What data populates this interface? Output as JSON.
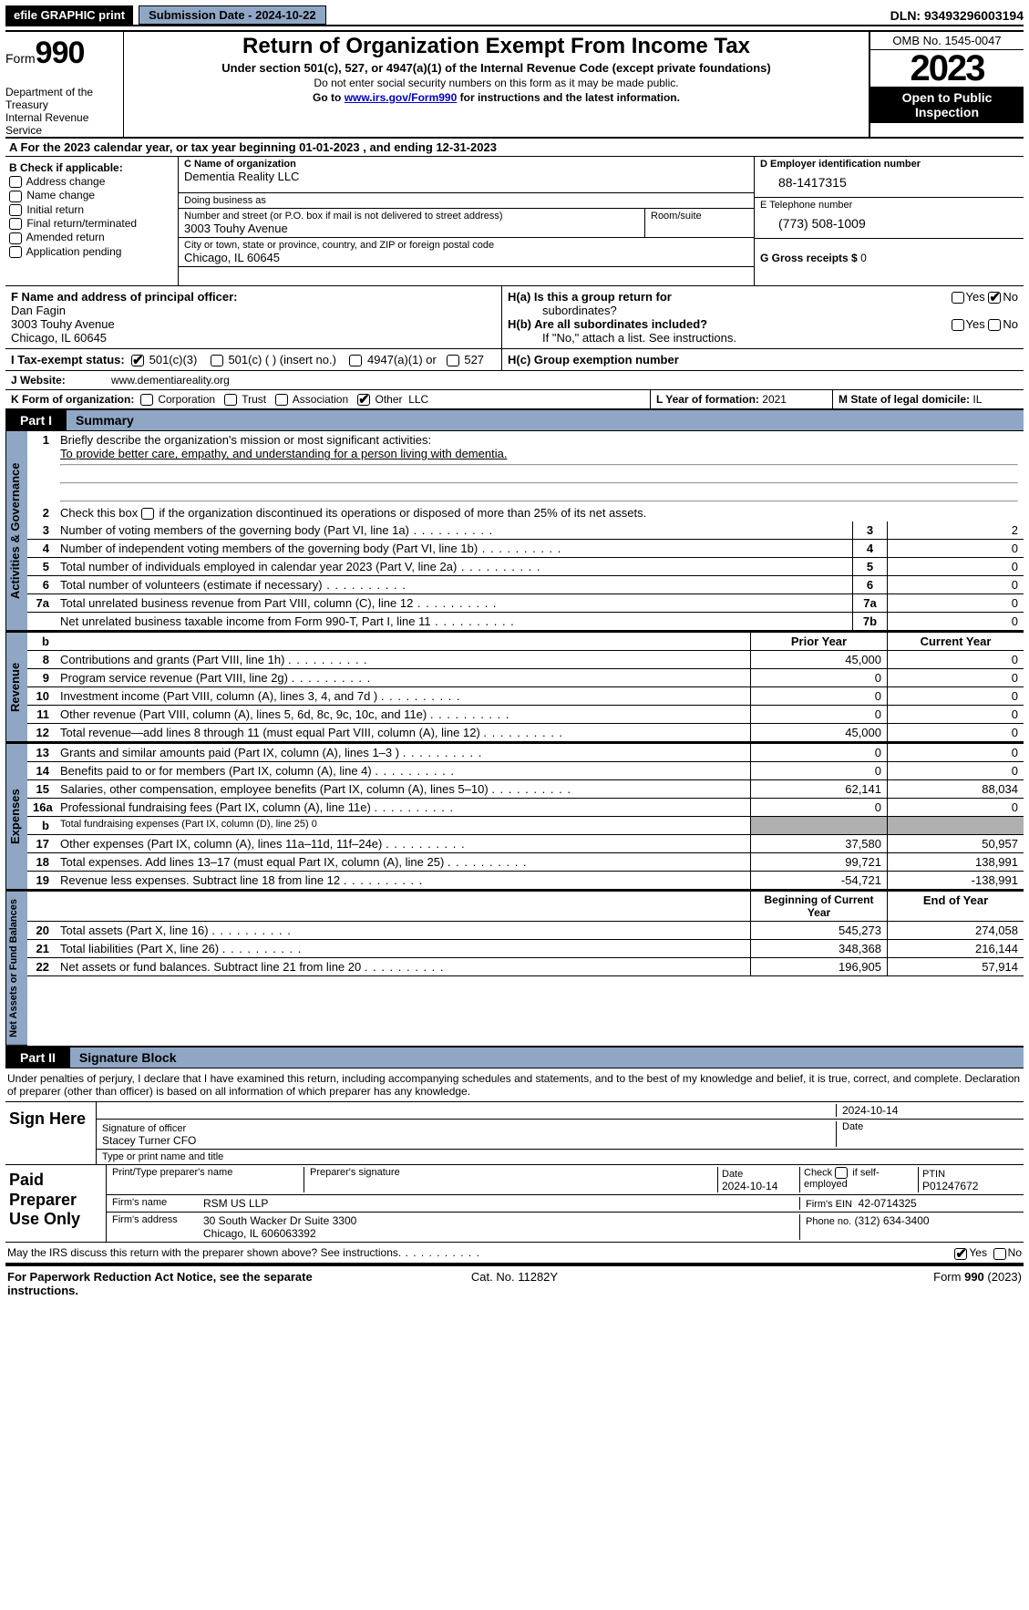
{
  "topbar": {
    "efile": "efile GRAPHIC print",
    "sub_btn": "Submission Date - 2024-10-22",
    "dln": "DLN: 93493296003194"
  },
  "header": {
    "form_word": "Form",
    "form_no": "990",
    "dept": "Department of the Treasury",
    "irs": "Internal Revenue Service",
    "title": "Return of Organization Exempt From Income Tax",
    "sub": "Under section 501(c), 527, or 4947(a)(1) of the Internal Revenue Code (except private foundations)",
    "notice": "Do not enter social security numbers on this form as it may be made public.",
    "goto_pre": "Go to ",
    "goto_link": "www.irs.gov/Form990",
    "goto_post": " for instructions and the latest information.",
    "omb": "OMB No. 1545-0047",
    "year": "2023",
    "open": "Open to Public Inspection"
  },
  "lineA": {
    "pre": "A For the 2023 calendar year, or tax year beginning ",
    "begin": "01-01-2023",
    "mid": "   , and ending ",
    "end": "12-31-2023"
  },
  "boxB": {
    "label": "B Check if applicable:",
    "items": [
      "Address change",
      "Name change",
      "Initial return",
      "Final return/terminated",
      "Amended return",
      "Application pending"
    ]
  },
  "boxC": {
    "name_lbl": "C Name of organization",
    "name": "Dementia Reality LLC",
    "dba_lbl": "Doing business as",
    "dba": "",
    "street_lbl": "Number and street (or P.O. box if mail is not delivered to street address)",
    "street": "3003 Touhy Avenue",
    "room_lbl": "Room/suite",
    "room": "",
    "city_lbl": "City or town, state or province, country, and ZIP or foreign postal code",
    "city": "Chicago, IL  60645"
  },
  "boxD": {
    "lbl": "D Employer identification number",
    "val": "88-1417315"
  },
  "boxE": {
    "lbl": "E Telephone number",
    "val": "(773) 508-1009"
  },
  "boxG": {
    "lbl": "G Gross receipts $",
    "val": "0"
  },
  "boxF": {
    "lbl": "F  Name and address of principal officer:",
    "name": "Dan Fagin",
    "addr1": "3003 Touhy Avenue",
    "addr2": "Chicago, IL  60645"
  },
  "boxH": {
    "ha_lbl": "H(a)  Is this a group return for",
    "ha_lbl2": "subordinates?",
    "ha_no": true,
    "hb_lbl": "H(b)  Are all subordinates included?",
    "hb_note": "If \"No,\" attach a list. See instructions.",
    "hc_lbl": "H(c)  Group exemption number"
  },
  "taxexempt": {
    "i_lbl": "I   Tax-exempt status:",
    "c3": "501(c)(3)",
    "c": "501(c) (  ) (insert no.)",
    "a1": "4947(a)(1) or",
    "s527": "527"
  },
  "website": {
    "j_lbl": "J   Website:",
    "val": "www.dementiareality.org"
  },
  "orgform": {
    "k_lbl": "K Form of organization:",
    "corp": "Corporation",
    "trust": "Trust",
    "assoc": "Association",
    "other": "Other",
    "other_val": "LLC"
  },
  "boxL": {
    "lbl": "L Year of formation:",
    "val": "2021"
  },
  "boxM": {
    "lbl": "M State of legal domicile:",
    "val": "IL"
  },
  "part1": {
    "hdr": "Part I",
    "title": "Summary"
  },
  "summary": {
    "l1_lbl": "Briefly describe the organization's mission or most significant activities:",
    "l1_val": "To provide better care, empathy, and understanding for a person living with dementia.",
    "l2": "Check this box        if the organization discontinued its operations or disposed of more than 25% of its net assets.",
    "gov_lines": [
      {
        "n": "3",
        "d": "Number of voting members of the governing body (Part VI, line 1a)",
        "b": "3",
        "v": "2"
      },
      {
        "n": "4",
        "d": "Number of independent voting members of the governing body (Part VI, line 1b)",
        "b": "4",
        "v": "0"
      },
      {
        "n": "5",
        "d": "Total number of individuals employed in calendar year 2023 (Part V, line 2a)",
        "b": "5",
        "v": "0"
      },
      {
        "n": "6",
        "d": "Total number of volunteers (estimate if necessary)",
        "b": "6",
        "v": "0"
      },
      {
        "n": "7a",
        "d": "Total unrelated business revenue from Part VIII, column (C), line 12",
        "b": "7a",
        "v": "0"
      },
      {
        "n": "",
        "d": "Net unrelated business taxable income from Form 990-T, Part I, line 11",
        "b": "7b",
        "v": "0"
      }
    ],
    "rev_hdr": {
      "b": "b",
      "py": "Prior Year",
      "cy": "Current Year"
    },
    "rev_lines": [
      {
        "n": "8",
        "d": "Contributions and grants (Part VIII, line 1h)",
        "py": "45,000",
        "cy": "0"
      },
      {
        "n": "9",
        "d": "Program service revenue (Part VIII, line 2g)",
        "py": "0",
        "cy": "0"
      },
      {
        "n": "10",
        "d": "Investment income (Part VIII, column (A), lines 3, 4, and 7d )",
        "py": "0",
        "cy": "0"
      },
      {
        "n": "11",
        "d": "Other revenue (Part VIII, column (A), lines 5, 6d, 8c, 9c, 10c, and 11e)",
        "py": "0",
        "cy": "0"
      },
      {
        "n": "12",
        "d": "Total revenue—add lines 8 through 11 (must equal Part VIII, column (A), line 12)",
        "py": "45,000",
        "cy": "0"
      }
    ],
    "exp_lines": [
      {
        "n": "13",
        "d": "Grants and similar amounts paid (Part IX, column (A), lines 1–3 )",
        "py": "0",
        "cy": "0"
      },
      {
        "n": "14",
        "d": "Benefits paid to or for members (Part IX, column (A), line 4)",
        "py": "0",
        "cy": "0"
      },
      {
        "n": "15",
        "d": "Salaries, other compensation, employee benefits (Part IX, column (A), lines 5–10)",
        "py": "62,141",
        "cy": "88,034"
      },
      {
        "n": "16a",
        "d": "Professional fundraising fees (Part IX, column (A), line 11e)",
        "py": "0",
        "cy": "0"
      },
      {
        "n": "b",
        "d": "Total fundraising expenses (Part IX, column (D), line 25) 0",
        "py": "",
        "cy": "",
        "shade": true,
        "small": true
      },
      {
        "n": "17",
        "d": "Other expenses (Part IX, column (A), lines 11a–11d, 11f–24e)",
        "py": "37,580",
        "cy": "50,957"
      },
      {
        "n": "18",
        "d": "Total expenses. Add lines 13–17 (must equal Part IX, column (A), line 25)",
        "py": "99,721",
        "cy": "138,991"
      },
      {
        "n": "19",
        "d": "Revenue less expenses. Subtract line 18 from line 12",
        "py": "-54,721",
        "cy": "-138,991"
      }
    ],
    "na_hdr": {
      "py": "Beginning of Current Year",
      "cy": "End of Year"
    },
    "na_lines": [
      {
        "n": "20",
        "d": "Total assets (Part X, line 16)",
        "py": "545,273",
        "cy": "274,058"
      },
      {
        "n": "21",
        "d": "Total liabilities (Part X, line 26)",
        "py": "348,368",
        "cy": "216,144"
      },
      {
        "n": "22",
        "d": "Net assets or fund balances. Subtract line 21 from line 20",
        "py": "196,905",
        "cy": "57,914"
      }
    ],
    "side_gov": "Activities & Governance",
    "side_rev": "Revenue",
    "side_exp": "Expenses",
    "side_na": "Net Assets or Fund Balances"
  },
  "part2": {
    "hdr": "Part II",
    "title": "Signature Block"
  },
  "sig": {
    "decl": "Under penalties of perjury, I declare that I have examined this return, including accompanying schedules and statements, and to the best of my knowledge and belief, it is true, correct, and complete. Declaration of preparer (other than officer) is based on all information of which preparer has any knowledge.",
    "sign_lbl": "Sign Here",
    "date": "2024-10-14",
    "sig_officer": "Signature of officer",
    "officer": "Stacey Turner CFO",
    "type_lbl": "Type or print name and title",
    "date_lbl": "Date",
    "paid_lbl": "Paid Preparer Use Only",
    "prep_name_lbl": "Print/Type preparer's name",
    "prep_sig_lbl": "Preparer's signature",
    "prep_date": "2024-10-14",
    "self_lbl": "Check         if self-employed",
    "ptin_lbl": "PTIN",
    "ptin": "P01247672",
    "firm_name_lbl": "Firm's name",
    "firm_name": "RSM US LLP",
    "firm_ein_lbl": "Firm's EIN",
    "firm_ein": "42-0714325",
    "firm_addr_lbl": "Firm's address",
    "firm_addr1": "30 South Wacker Dr Suite 3300",
    "firm_addr2": "Chicago, IL  606063392",
    "firm_phone_lbl": "Phone no.",
    "firm_phone": "(312) 634-3400",
    "discuss": "May the IRS discuss this return with the preparer shown above? See instructions.",
    "discuss_yes": true
  },
  "footer": {
    "pra": "For Paperwork Reduction Act Notice, see the separate instructions.",
    "cat": "Cat. No. 11282Y",
    "form": "Form 990 (2023)"
  },
  "yn": {
    "yes": "Yes",
    "no": "No"
  }
}
